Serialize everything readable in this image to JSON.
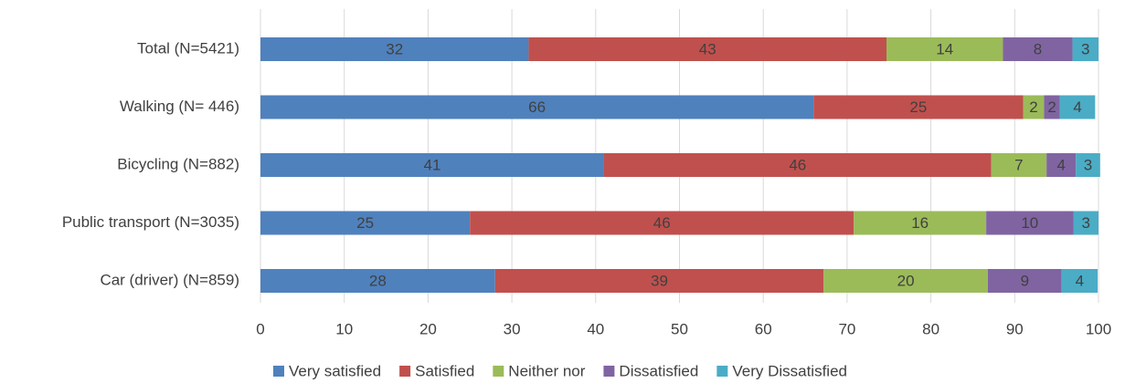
{
  "chart_data": {
    "type": "bar",
    "orientation": "horizontal",
    "stacked": true,
    "categories": [
      "Total (N=5421)",
      "Walking (N= 446)",
      "Bicycling (N=882)",
      "Public transport (N=3035)",
      "Car (driver) (N=859)"
    ],
    "series": [
      {
        "name": "Very satisfied",
        "color": "#4f81bd",
        "values": [
          32,
          66,
          41,
          25,
          28
        ],
        "labels": [
          "32",
          "66",
          "41",
          "25",
          "28"
        ]
      },
      {
        "name": "Satisfied",
        "color": "#c0504d",
        "values": [
          42.7,
          25,
          46.2,
          45.8,
          39.2
        ],
        "labels": [
          "43",
          "25",
          "46",
          "46",
          "39"
        ]
      },
      {
        "name": "Neither nor",
        "color": "#9bbb59",
        "values": [
          13.9,
          2.5,
          6.6,
          15.8,
          19.6
        ],
        "labels": [
          "14",
          "2",
          "7",
          "16",
          "20"
        ]
      },
      {
        "name": "Dissatisfied",
        "color": "#8064a2",
        "values": [
          8.3,
          1.9,
          3.5,
          10.4,
          8.8
        ],
        "labels": [
          "8",
          "2",
          "4",
          "10",
          "9"
        ]
      },
      {
        "name": "Very Dissatisfied",
        "color": "#4bacc6",
        "values": [
          3.1,
          4.2,
          2.9,
          3.0,
          4.3
        ],
        "labels": [
          "3",
          "4",
          "3",
          "3",
          "4"
        ]
      }
    ],
    "xlim": [
      0,
      100
    ],
    "xticks": [
      "0",
      "10",
      "20",
      "30",
      "40",
      "50",
      "60",
      "70",
      "80",
      "90",
      "100"
    ],
    "grid": "vertical",
    "legend": "bottom"
  }
}
